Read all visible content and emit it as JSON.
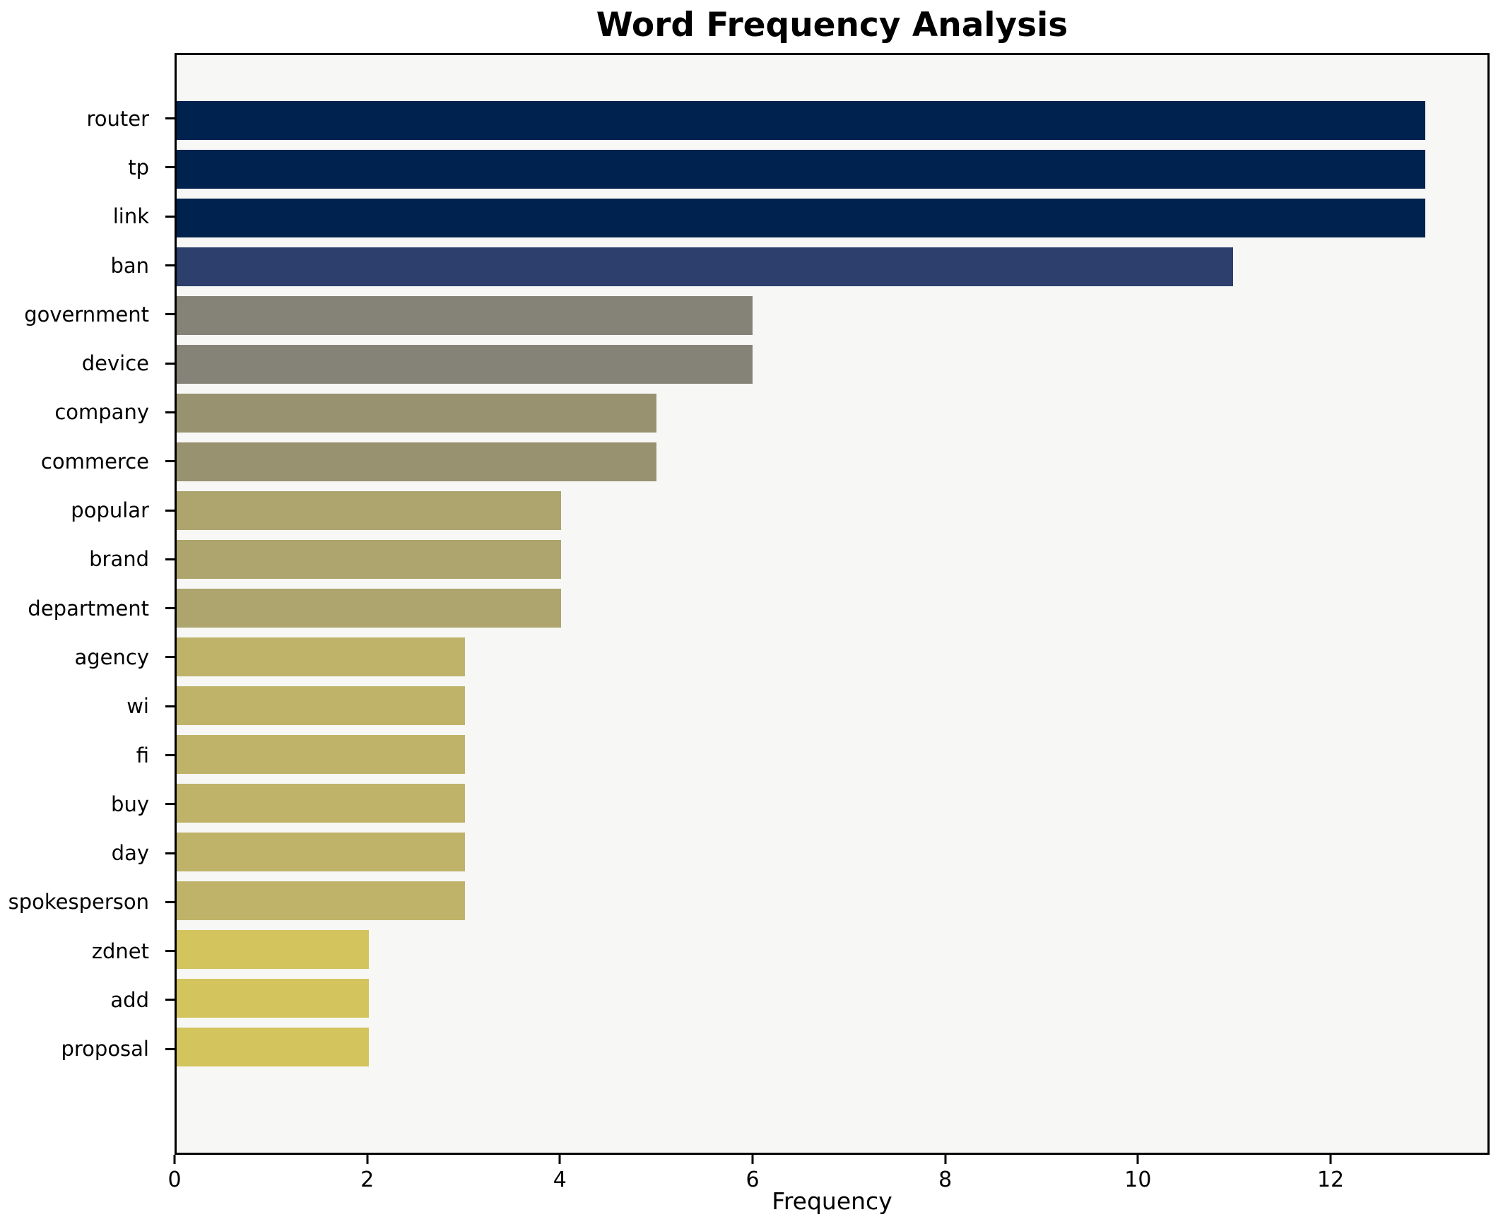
{
  "chart_data": {
    "type": "bar",
    "orientation": "horizontal",
    "title": "Word Frequency Analysis",
    "xlabel": "Frequency",
    "ylabel": "",
    "categories": [
      "router",
      "tp",
      "link",
      "ban",
      "government",
      "device",
      "company",
      "commerce",
      "popular",
      "brand",
      "department",
      "agency",
      "wi",
      "fi",
      "buy",
      "day",
      "spokesperson",
      "zdnet",
      "add",
      "proposal"
    ],
    "values": [
      13,
      13,
      13,
      11,
      6,
      6,
      5,
      5,
      4,
      4,
      4,
      3,
      3,
      3,
      3,
      3,
      3,
      2,
      2,
      2
    ],
    "bar_colors": [
      "#00224e",
      "#00224e",
      "#00224e",
      "#2c3f6d",
      "#858378",
      "#858378",
      "#989271",
      "#989271",
      "#ada46e",
      "#ada46e",
      "#ada46e",
      "#bfb369",
      "#bfb369",
      "#bfb369",
      "#bfb369",
      "#bfb369",
      "#bfb369",
      "#d3c45e",
      "#d3c45e",
      "#d3c45e"
    ],
    "xlim": [
      0,
      13.65
    ],
    "xticks": [
      0,
      2,
      4,
      6,
      8,
      10,
      12
    ],
    "grid": false,
    "legend": "none",
    "colormap": "cividis",
    "plot_bg": "#f7f7f5",
    "figure_bg": "#ffffff"
  }
}
